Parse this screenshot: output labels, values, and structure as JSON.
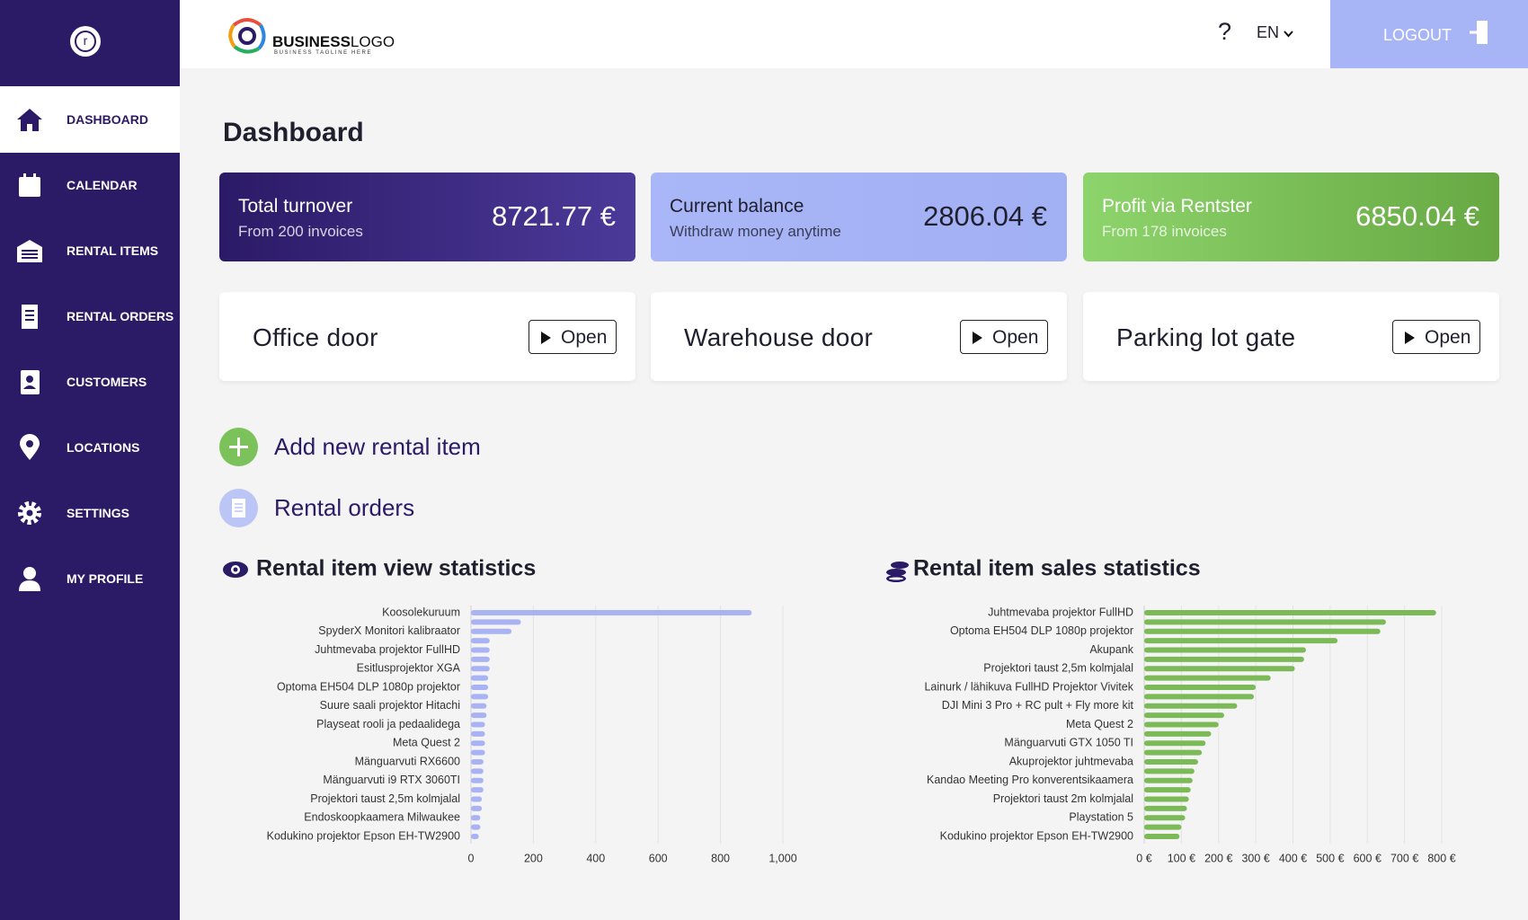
{
  "sidebar": {
    "menu": [
      "DASHBOARD",
      "CALENDAR",
      "RENTAL ITEMS",
      "RENTAL ORDERS",
      "CUSTOMERS",
      "LOCATIONS",
      "SETTINGS",
      "MY PROFILE"
    ],
    "active": 0
  },
  "header": {
    "logo_bold": "BUSINESS",
    "logo_light": "LOGO",
    "tagline": "BUSINESS TAGLINE HERE",
    "help": "?",
    "language": "EN",
    "logout": "LOGOUT"
  },
  "page_title": "Dashboard",
  "summary_cards": [
    {
      "title": "Total turnover",
      "subtitle": "From 200 invoices",
      "amount": "8721.77 €"
    },
    {
      "title": "Current balance",
      "subtitle": "Withdraw money anytime",
      "amount": "2806.04 €"
    },
    {
      "title": "Profit via Rentster",
      "subtitle": "From 178 invoices",
      "amount": "6850.04 €"
    }
  ],
  "doors": [
    {
      "name": "Office door",
      "button": "Open"
    },
    {
      "name": "Warehouse door",
      "button": "Open"
    },
    {
      "name": "Parking lot gate",
      "button": "Open"
    }
  ],
  "actions": [
    "Add new rental item",
    "Rental orders"
  ],
  "chart_data": [
    {
      "type": "bar",
      "orientation": "horizontal",
      "title": "Rental item view statistics",
      "color": "#a9b3f3",
      "grid": true,
      "categories": [
        "Koosolekuruum",
        null,
        "SpyderX Monitori kalibraator",
        null,
        "Juhtmevaba projektor FullHD",
        null,
        "Esitlusprojektor XGA",
        null,
        "Optoma EH504 DLP 1080p  projektor",
        null,
        "Suure saali projektor Hitachi",
        null,
        "Playseat rooli ja pedaalidega",
        null,
        "Meta Quest 2",
        null,
        "Mänguarvuti RX6600",
        null,
        "Mänguarvuti i9 RTX 3060TI",
        null,
        "Projektori taust 2,5m kolmjalal",
        null,
        "Endoskoopkaamera Milwaukee",
        null,
        "Kodukino projektor Epson EH-TW2900"
      ],
      "values": [
        900,
        160,
        130,
        60,
        60,
        60,
        60,
        55,
        55,
        55,
        50,
        50,
        45,
        45,
        45,
        45,
        40,
        40,
        40,
        40,
        35,
        35,
        30,
        30,
        25
      ],
      "xlim": [
        0,
        1000
      ],
      "xticks": [
        0,
        200,
        400,
        600,
        800,
        {
          "value": 1000,
          "label": "1,000"
        }
      ]
    },
    {
      "type": "bar",
      "orientation": "horizontal",
      "title": "Rental item sales statistics",
      "color": "#7cba58",
      "grid": true,
      "categories": [
        "Juhtmevaba projektor FullHD",
        null,
        "Optoma EH504 DLP 1080p  projektor",
        null,
        "Akupank",
        null,
        "Projektori taust 2,5m kolmjalal",
        null,
        "Lainurk / lähikuva FullHD Projektor Vivitek",
        null,
        "DJI Mini 3 Pro + RC pult + Fly more kit",
        null,
        "Meta Quest 2",
        null,
        "Mänguarvuti GTX 1050 TI",
        null,
        "Akuprojektor juhtmevaba",
        null,
        "Kandao Meeting Pro konverentsikaamera",
        null,
        "Projektori taust 2m kolmjalal",
        null,
        "Playstation 5",
        null,
        "Kodukino projektor Epson EH-TW2900"
      ],
      "values": [
        785,
        650,
        635,
        520,
        435,
        430,
        405,
        340,
        300,
        295,
        250,
        215,
        200,
        180,
        165,
        155,
        145,
        135,
        130,
        125,
        120,
        115,
        110,
        100,
        95
      ],
      "xlim": [
        0,
        800
      ],
      "xticks": [
        {
          "value": 0,
          "label": "0 €"
        },
        {
          "value": 100,
          "label": "100 €"
        },
        {
          "value": 200,
          "label": "200 €"
        },
        {
          "value": 300,
          "label": "300 €"
        },
        {
          "value": 400,
          "label": "400 €"
        },
        {
          "value": 500,
          "label": "500 €"
        },
        {
          "value": 600,
          "label": "600 €"
        },
        {
          "value": 700,
          "label": "700 €"
        },
        {
          "value": 800,
          "label": "800 €"
        }
      ]
    }
  ]
}
